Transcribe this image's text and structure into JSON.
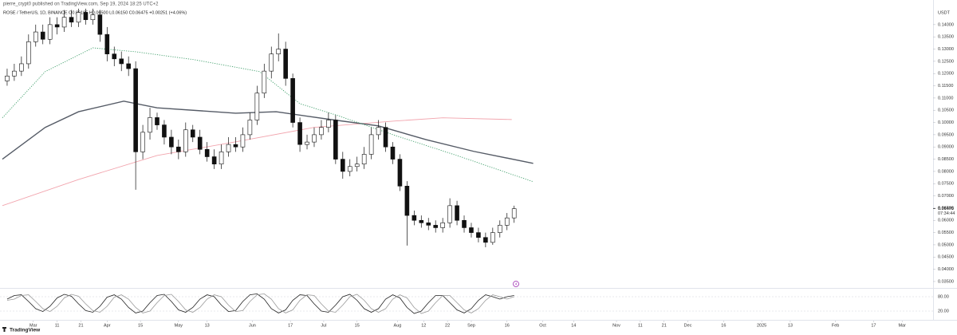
{
  "header": {
    "publisher": "pierre_crypt0 published on TradingView.com, Sep 19, 2024 18:25 UTC+2",
    "symbol": "ROSE / TetherUS, 1D, BINANCE  O0.06185  H0.06500  L0.06150  C0.06475  +0.00251 (+4.06%)"
  },
  "footer": {
    "brand": "TradingView"
  },
  "chart_data": {
    "type": "candlestick",
    "x": [
      "2024-02-19",
      "2024-02-22",
      "2024-02-25",
      "2024-02-28",
      "2024-03-02",
      "2024-03-05",
      "2024-03-08",
      "2024-03-11",
      "2024-03-14",
      "2024-03-17",
      "2024-03-20",
      "2024-03-23",
      "2024-03-26",
      "2024-03-29",
      "2024-04-01",
      "2024-04-04",
      "2024-04-07",
      "2024-04-10",
      "2024-04-13",
      "2024-04-16",
      "2024-04-19",
      "2024-04-22",
      "2024-04-25",
      "2024-04-28",
      "2024-05-01",
      "2024-05-04",
      "2024-05-07",
      "2024-05-10",
      "2024-05-13",
      "2024-05-16",
      "2024-05-19",
      "2024-05-22",
      "2024-05-25",
      "2024-05-28",
      "2024-05-31",
      "2024-06-03",
      "2024-06-06",
      "2024-06-09",
      "2024-06-12",
      "2024-06-15",
      "2024-06-18",
      "2024-06-21",
      "2024-06-24",
      "2024-06-27",
      "2024-06-30",
      "2024-07-03",
      "2024-07-06",
      "2024-07-09",
      "2024-07-12",
      "2024-07-15",
      "2024-07-18",
      "2024-07-21",
      "2024-07-24",
      "2024-07-27",
      "2024-07-30",
      "2024-08-02",
      "2024-08-05",
      "2024-08-08",
      "2024-08-11",
      "2024-08-14",
      "2024-08-17",
      "2024-08-20",
      "2024-08-23",
      "2024-08-26",
      "2024-08-29",
      "2024-09-01",
      "2024-09-04",
      "2024-09-07",
      "2024-09-10",
      "2024-09-13",
      "2024-09-16",
      "2024-09-19"
    ],
    "open": [
      0.117,
      0.119,
      0.121,
      0.124,
      0.133,
      0.137,
      0.134,
      0.14,
      0.139,
      0.143,
      0.141,
      0.145,
      0.142,
      0.144,
      0.136,
      0.128,
      0.126,
      0.124,
      0.122,
      0.088,
      0.096,
      0.102,
      0.099,
      0.094,
      0.09,
      0.088,
      0.097,
      0.094,
      0.089,
      0.086,
      0.083,
      0.088,
      0.091,
      0.09,
      0.095,
      0.101,
      0.112,
      0.121,
      0.128,
      0.13,
      0.118,
      0.1,
      0.091,
      0.092,
      0.095,
      0.098,
      0.101,
      0.085,
      0.08,
      0.082,
      0.083,
      0.087,
      0.095,
      0.098,
      0.09,
      0.085,
      0.074,
      0.062,
      0.06,
      0.059,
      0.058,
      0.057,
      0.059,
      0.066,
      0.06,
      0.057,
      0.055,
      0.053,
      0.051,
      0.055,
      0.058,
      0.061
    ],
    "high": [
      0.122,
      0.124,
      0.127,
      0.136,
      0.14,
      0.14,
      0.143,
      0.143,
      0.146,
      0.146,
      0.1465,
      0.1465,
      0.1465,
      0.146,
      0.139,
      0.131,
      0.129,
      0.127,
      0.125,
      0.099,
      0.106,
      0.104,
      0.101,
      0.097,
      0.093,
      0.1,
      0.099,
      0.097,
      0.092,
      0.089,
      0.091,
      0.094,
      0.094,
      0.098,
      0.104,
      0.115,
      0.124,
      0.131,
      0.1364,
      0.133,
      0.12,
      0.102,
      0.095,
      0.098,
      0.101,
      0.104,
      0.103,
      0.088,
      0.085,
      0.086,
      0.09,
      0.098,
      0.101,
      0.1,
      0.092,
      0.087,
      0.076,
      0.064,
      0.062,
      0.061,
      0.06,
      0.061,
      0.069,
      0.068,
      0.062,
      0.059,
      0.057,
      0.055,
      0.057,
      0.06,
      0.063,
      0.066
    ],
    "low": [
      0.115,
      0.117,
      0.119,
      0.122,
      0.131,
      0.132,
      0.132,
      0.136,
      0.137,
      0.139,
      0.139,
      0.14,
      0.14,
      0.133,
      0.125,
      0.123,
      0.121,
      0.119,
      0.0725,
      0.085,
      0.093,
      0.097,
      0.091,
      0.087,
      0.085,
      0.086,
      0.092,
      0.087,
      0.084,
      0.081,
      0.081,
      0.086,
      0.088,
      0.088,
      0.093,
      0.099,
      0.11,
      0.118,
      0.125,
      0.115,
      0.098,
      0.088,
      0.089,
      0.09,
      0.093,
      0.096,
      0.083,
      0.077,
      0.078,
      0.08,
      0.081,
      0.085,
      0.093,
      0.088,
      0.083,
      0.072,
      0.0497,
      0.058,
      0.057,
      0.056,
      0.055,
      0.055,
      0.057,
      0.058,
      0.055,
      0.053,
      0.051,
      0.049,
      0.05,
      0.053,
      0.056,
      0.059
    ],
    "close": [
      0.119,
      0.121,
      0.124,
      0.133,
      0.137,
      0.134,
      0.14,
      0.139,
      0.143,
      0.141,
      0.145,
      0.142,
      0.144,
      0.136,
      0.128,
      0.126,
      0.124,
      0.122,
      0.088,
      0.096,
      0.102,
      0.099,
      0.094,
      0.09,
      0.088,
      0.097,
      0.094,
      0.089,
      0.086,
      0.083,
      0.088,
      0.091,
      0.09,
      0.095,
      0.101,
      0.112,
      0.121,
      0.128,
      0.13,
      0.118,
      0.1,
      0.091,
      0.092,
      0.095,
      0.098,
      0.101,
      0.085,
      0.08,
      0.082,
      0.083,
      0.087,
      0.095,
      0.098,
      0.09,
      0.085,
      0.074,
      0.062,
      0.06,
      0.059,
      0.058,
      0.057,
      0.059,
      0.066,
      0.06,
      0.057,
      0.055,
      0.053,
      0.051,
      0.055,
      0.058,
      0.061,
      0.06475
    ],
    "up_color": "#ffffff",
    "down_color": "#111111",
    "ylim": [
      0.0327,
      0.1468
    ],
    "yticks": [
      {
        "value": 0.14,
        "label": "0.14000"
      },
      {
        "value": 0.135,
        "label": "0.13500"
      },
      {
        "value": 0.13,
        "label": "0.13000"
      },
      {
        "value": 0.125,
        "label": "0.12500"
      },
      {
        "value": 0.12,
        "label": "0.12000"
      },
      {
        "value": 0.115,
        "label": "0.11500"
      },
      {
        "value": 0.11,
        "label": "0.11000"
      },
      {
        "value": 0.105,
        "label": "0.10500"
      },
      {
        "value": 0.1,
        "label": "0.10000"
      },
      {
        "value": 0.095,
        "label": "0.09500"
      },
      {
        "value": 0.09,
        "label": "0.09000"
      },
      {
        "value": 0.085,
        "label": "0.08500"
      },
      {
        "value": 0.08,
        "label": "0.08000"
      },
      {
        "value": 0.075,
        "label": "0.07500"
      },
      {
        "value": 0.07,
        "label": "0.07000"
      },
      {
        "value": 0.065,
        "label": "0.06500"
      },
      {
        "value": 0.06,
        "label": "0.06000"
      },
      {
        "value": 0.055,
        "label": "0.05500"
      },
      {
        "value": 0.05,
        "label": "0.05000"
      },
      {
        "value": 0.045,
        "label": "0.04500"
      },
      {
        "value": 0.04,
        "label": "0.04000"
      },
      {
        "value": 0.035,
        "label": "0.03500"
      }
    ],
    "y_unit": "USDT",
    "last_price": {
      "value": 0.06475,
      "label": "0.06475"
    },
    "countdown": "07:34:44",
    "marker": "4",
    "xlim": [
      "2024-02-16",
      "2025-03-14"
    ],
    "xticks": [
      {
        "value": "2024-03-01",
        "label": "Mar"
      },
      {
        "value": "2024-03-11",
        "label": "11"
      },
      {
        "value": "2024-03-21",
        "label": "21"
      },
      {
        "value": "2024-04-01",
        "label": "Apr"
      },
      {
        "value": "2024-04-15",
        "label": "15"
      },
      {
        "value": "2024-05-01",
        "label": "May"
      },
      {
        "value": "2024-05-13",
        "label": "13"
      },
      {
        "value": "2024-06-01",
        "label": "Jun"
      },
      {
        "value": "2024-06-17",
        "label": "17"
      },
      {
        "value": "2024-07-01",
        "label": "Jul"
      },
      {
        "value": "2024-07-15",
        "label": "15"
      },
      {
        "value": "2024-08-01",
        "label": "Aug"
      },
      {
        "value": "2024-08-12",
        "label": "12"
      },
      {
        "value": "2024-08-22",
        "label": "22"
      },
      {
        "value": "2024-09-01",
        "label": "Sep"
      },
      {
        "value": "2024-09-16",
        "label": "16"
      },
      {
        "value": "2024-10-01",
        "label": "Oct"
      },
      {
        "value": "2024-10-14",
        "label": "14"
      },
      {
        "value": "2024-11-01",
        "label": "Nov"
      },
      {
        "value": "2024-11-11",
        "label": "11"
      },
      {
        "value": "2024-11-21",
        "label": "21"
      },
      {
        "value": "2024-12-01",
        "label": "Dec"
      },
      {
        "value": "2024-12-16",
        "label": "16"
      },
      {
        "value": "2025-01-01",
        "label": "2025"
      },
      {
        "value": "2025-01-13",
        "label": "13"
      },
      {
        "value": "2025-02-01",
        "label": "Feb"
      },
      {
        "value": "2025-02-17",
        "label": "17"
      },
      {
        "value": "2025-03-01",
        "label": "Mar"
      }
    ],
    "overlays": [
      {
        "color": "#f2a5ae",
        "style": "solid",
        "x": [
          "2024-02-17",
          "2024-03-20",
          "2024-04-22",
          "2024-05-25",
          "2024-06-27",
          "2024-07-31",
          "2024-08-20",
          "2024-09-18"
        ],
        "values": [
          0.066,
          0.0767,
          0.0865,
          0.0921,
          0.098,
          0.1006,
          0.1019,
          0.1012
        ]
      },
      {
        "color": "#555b66",
        "style": "solid",
        "x": [
          "2024-02-17",
          "2024-03-06",
          "2024-03-20",
          "2024-04-08",
          "2024-04-22",
          "2024-05-25",
          "2024-06-11",
          "2024-07-04",
          "2024-07-24",
          "2024-08-13",
          "2024-09-02",
          "2024-09-27"
        ],
        "values": [
          0.085,
          0.098,
          0.1044,
          0.1087,
          0.106,
          0.1038,
          0.1044,
          0.1012,
          0.0986,
          0.093,
          0.0882,
          0.0833
        ]
      },
      {
        "color": "#3f9e6a",
        "style": "dotted",
        "x": [
          "2024-02-17",
          "2024-03-06",
          "2024-03-26",
          "2024-04-13",
          "2024-05-08",
          "2024-06-04",
          "2024-06-21",
          "2024-07-07",
          "2024-07-31",
          "2024-08-26",
          "2024-09-27"
        ],
        "values": [
          0.1019,
          0.1208,
          0.1305,
          0.1289,
          0.1256,
          0.1208,
          0.1077,
          0.1028,
          0.0947,
          0.0865,
          0.0758
        ]
      }
    ],
    "oscillator": {
      "ylim": [
        -10,
        110
      ],
      "yticks": [
        {
          "value": 80,
          "label": "80.00"
        },
        {
          "value": 20,
          "label": "20.00"
        }
      ],
      "series": [
        {
          "color": "#222222",
          "values": [
            70,
            85,
            88,
            60,
            30,
            18,
            40,
            75,
            90,
            82,
            50,
            22,
            15,
            40,
            78,
            88,
            70,
            35,
            12,
            20,
            55,
            85,
            90,
            60,
            25,
            15,
            35,
            70,
            88,
            80,
            45,
            18,
            22,
            60,
            88,
            92,
            70,
            30,
            12,
            25,
            65,
            88,
            85,
            50,
            20,
            15,
            45,
            80,
            90,
            65,
            30,
            15,
            30,
            70,
            88,
            75,
            35,
            10,
            20,
            55,
            85,
            85,
            55,
            25,
            12,
            30,
            65,
            88,
            80,
            70,
            80,
            85
          ]
        },
        {
          "color": "#9a9a9a",
          "values": [
            65,
            70,
            85,
            88,
            60,
            30,
            18,
            40,
            75,
            90,
            82,
            50,
            22,
            15,
            40,
            78,
            88,
            70,
            35,
            12,
            20,
            55,
            85,
            90,
            60,
            25,
            15,
            35,
            70,
            88,
            80,
            45,
            18,
            22,
            60,
            88,
            92,
            70,
            30,
            12,
            25,
            65,
            88,
            85,
            50,
            20,
            15,
            45,
            80,
            90,
            65,
            30,
            15,
            30,
            70,
            88,
            75,
            35,
            10,
            20,
            55,
            85,
            85,
            55,
            25,
            12,
            30,
            65,
            88,
            80,
            70,
            80
          ]
        }
      ]
    }
  }
}
